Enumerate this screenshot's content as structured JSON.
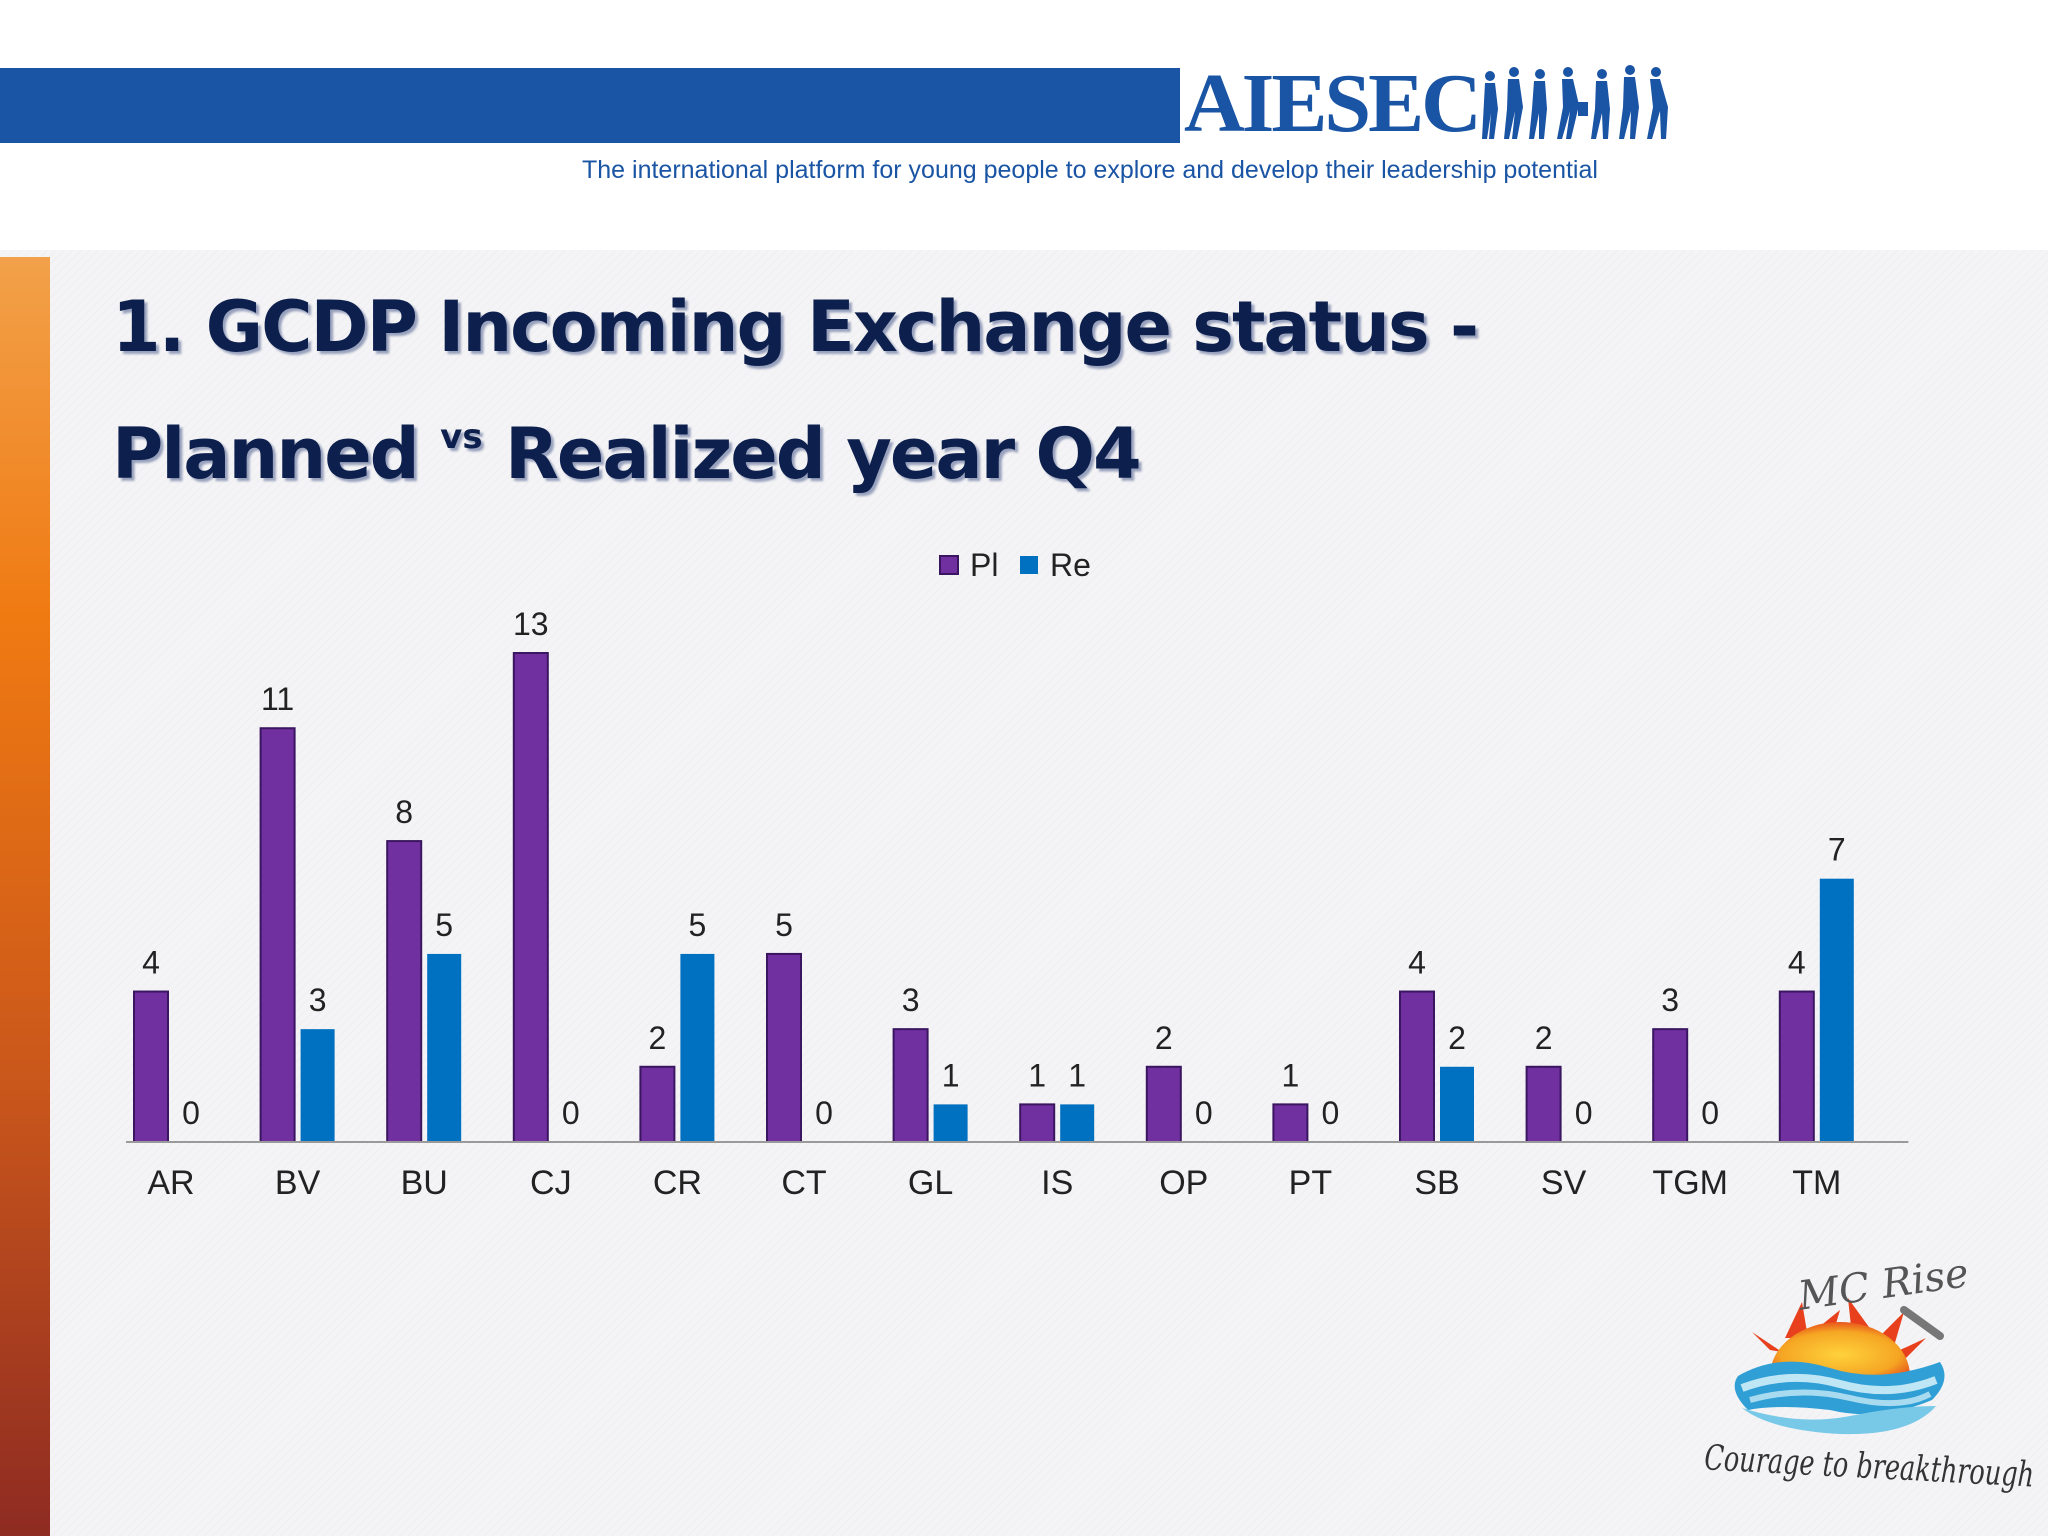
{
  "header": {
    "logo_text": "AIESEC",
    "tagline": "The international platform for young people to explore and develop their leadership potential"
  },
  "slide": {
    "title_line1": "1. GCDP Incoming Exchange status -",
    "title_line2_a": "Planned",
    "title_line2_sup": "vs",
    "title_line2_b": "Realized year Q4"
  },
  "badge": {
    "name": "MC Rise",
    "slogan": "Courage to breakthrough"
  },
  "colors": {
    "pl": "#7030a0",
    "re": "#0070c0",
    "brand": "#1a54a4"
  },
  "chart_data": {
    "type": "bar",
    "categories": [
      "AR",
      "BV",
      "BU",
      "CJ",
      "CR",
      "CT",
      "GL",
      "IS",
      "OP",
      "PT",
      "SB",
      "SV",
      "TGM",
      "TM"
    ],
    "series": [
      {
        "name": "Pl",
        "values": [
          4,
          11,
          8,
          13,
          2,
          5,
          3,
          1,
          2,
          1,
          4,
          2,
          3,
          4
        ]
      },
      {
        "name": "Re",
        "values": [
          0,
          3,
          5,
          0,
          5,
          0,
          1,
          1,
          0,
          0,
          2,
          0,
          0,
          7
        ]
      }
    ],
    "ylim": [
      0,
      13
    ],
    "grid": false,
    "legend": "top-center"
  }
}
